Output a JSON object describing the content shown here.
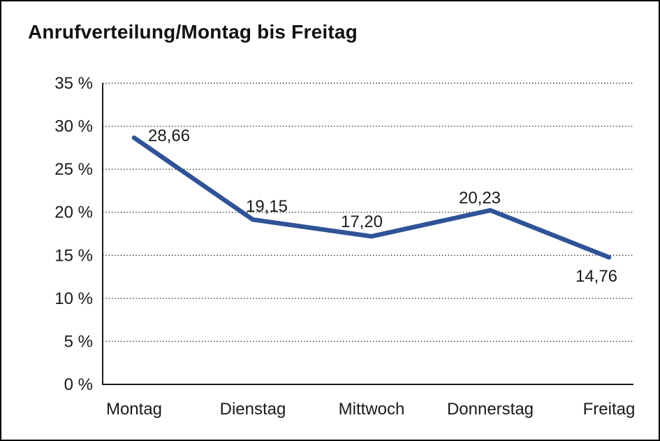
{
  "window": {
    "background": "#ffffff",
    "border_color": "#000000"
  },
  "chart_data": {
    "type": "line",
    "title": "Anrufverteilung/Montag bis Freitag",
    "categories": [
      "Montag",
      "Dienstag",
      "Mittwoch",
      "Donnerstag",
      "Freitag"
    ],
    "values": [
      28.66,
      19.15,
      17.2,
      20.23,
      14.76
    ],
    "point_labels": [
      "28,66",
      "19,15",
      "17,20",
      "20,23",
      "14,76"
    ],
    "xlabel": "",
    "ylabel": "",
    "ylim": [
      0,
      35
    ],
    "y_ticks": [
      0,
      5,
      10,
      15,
      20,
      25,
      30,
      35
    ],
    "y_tick_labels": [
      "0 %",
      "5 %",
      "10 %",
      "15 %",
      "20 %",
      "25 %",
      "30 %",
      "35 %"
    ],
    "grid": "horizontal-dotted",
    "legend": "none",
    "line_color": "#2f5396",
    "axis_color": "#1a1a1a",
    "grid_color": "#2a2a2a",
    "text_color": "#1a1a1a"
  }
}
